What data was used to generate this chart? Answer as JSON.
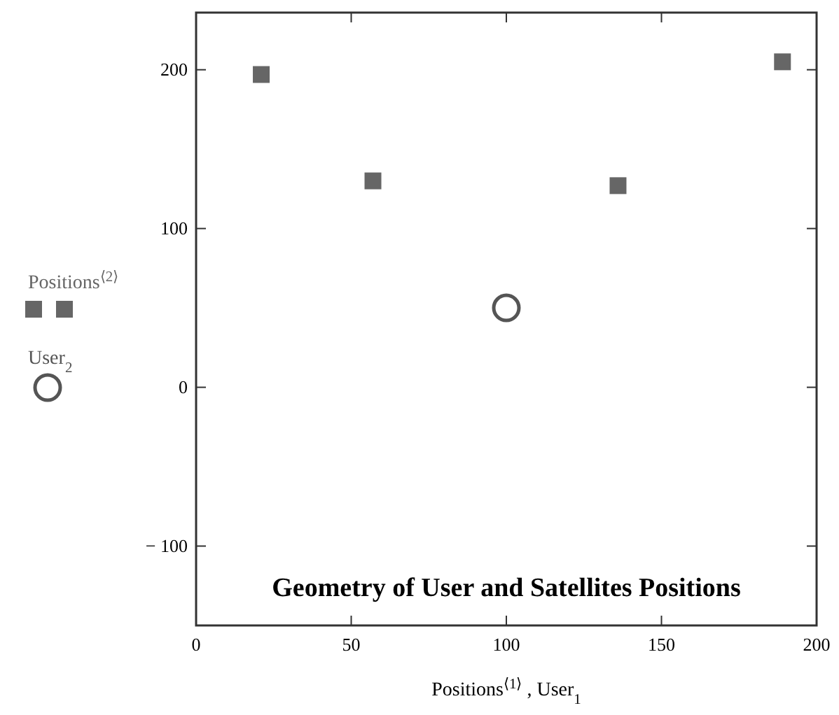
{
  "chart_data": {
    "type": "scatter",
    "title": "Geometry of User and Satellites Positions",
    "xlabel": "Positions$^{⟨1⟩}$ , User$_{1}$",
    "series": [
      {
        "name": "Positions$^{⟨2⟩}$",
        "color": "#666666",
        "marker": "square",
        "x": [
          21,
          57,
          136,
          189
        ],
        "values": [
          197,
          130,
          127,
          205
        ]
      },
      {
        "name": "User$_{2}$",
        "color": "#555555",
        "marker": "circle",
        "x": [
          100
        ],
        "values": [
          50
        ]
      }
    ],
    "xlim": [
      0,
      200
    ],
    "xticks": [
      0,
      50,
      100,
      150,
      200
    ],
    "ylim": [
      -150,
      236
    ],
    "yticks": [
      -100,
      0,
      100,
      200
    ],
    "grid": false,
    "legend": "left"
  }
}
